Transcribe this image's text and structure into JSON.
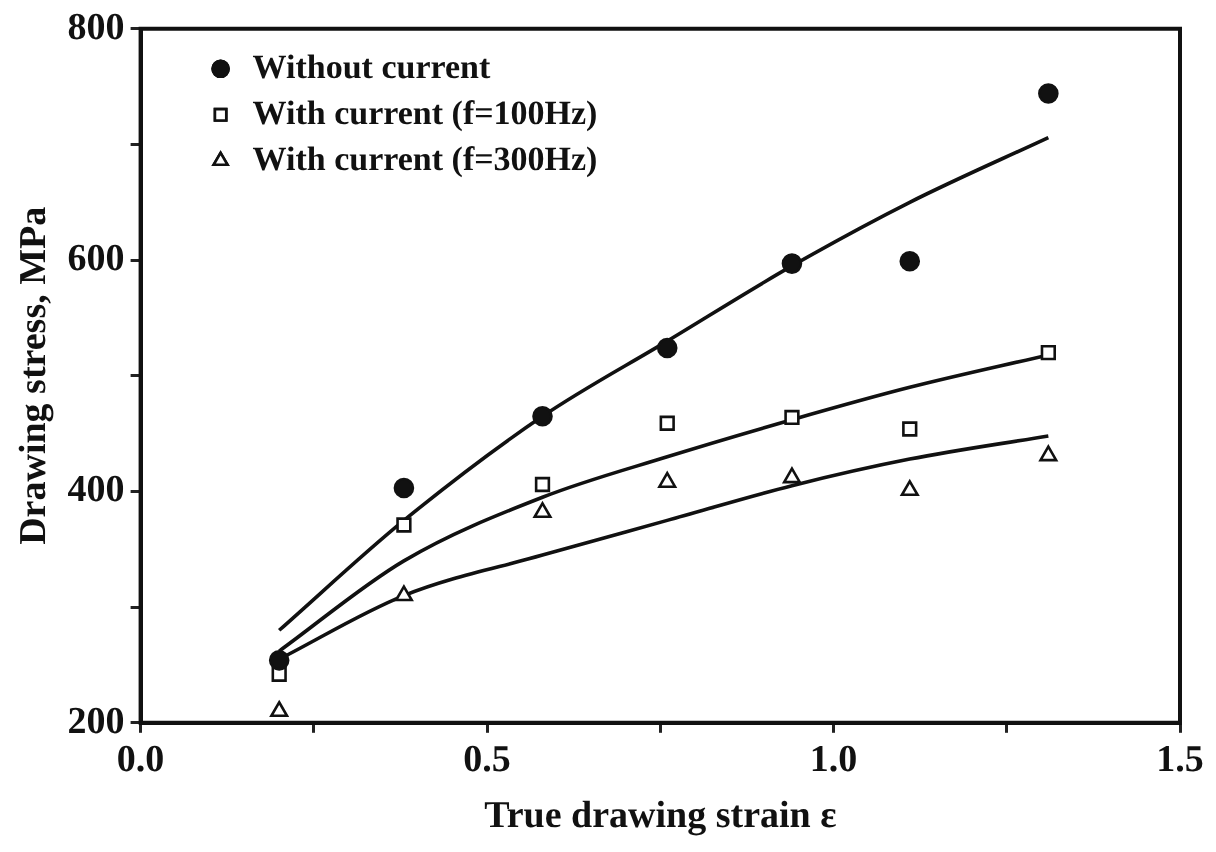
{
  "chart_data": {
    "type": "scatter",
    "xlabel": "True drawing strain ε",
    "ylabel": "Drawing stress, MPa",
    "xlim": [
      0,
      1.5
    ],
    "xticks": [
      {
        "value": 0,
        "label": "0.0"
      },
      {
        "value": 0.25,
        "label": null
      },
      {
        "value": 0.5,
        "label": "0.5"
      },
      {
        "value": 0.75,
        "label": null
      },
      {
        "value": 1,
        "label": "1.0"
      },
      {
        "value": 1.25,
        "label": null
      },
      {
        "value": 1.5,
        "label": "1.5"
      }
    ],
    "ylim": [
      200,
      800
    ],
    "yticks": [
      200,
      {
        "value": 300,
        "label": null
      },
      400,
      {
        "value": 500,
        "label": null
      },
      600,
      {
        "value": 700,
        "label": null
      },
      800
    ],
    "grid": false,
    "legend": "top left",
    "series": [
      {
        "name": "Without current",
        "color": "#111111",
        "marker": "circle",
        "x": [
          0.2,
          0.38,
          0.58,
          0.76,
          0.94,
          1.11,
          1.31
        ],
        "values": [
          254,
          403,
          465,
          524,
          597,
          599,
          744
        ]
      },
      {
        "name": "With current (f=100Hz)",
        "color": "#111111",
        "marker": "square",
        "x": [
          0.2,
          0.38,
          0.58,
          0.76,
          0.94,
          1.11,
          1.31
        ],
        "values": [
          242,
          371,
          406,
          459,
          464,
          454,
          520
        ]
      },
      {
        "name": "With current (f=300Hz)",
        "color": "#111111",
        "marker": "triangle",
        "x": [
          0.2,
          0.38,
          0.58,
          0.76,
          0.94,
          1.11,
          1.31
        ],
        "values": [
          210,
          310,
          382,
          408,
          412,
          401,
          431
        ]
      },
      {
        "type": "line",
        "color": "#111111",
        "marker": "none",
        "x": [
          0.2,
          0.38,
          0.58,
          0.76,
          0.94,
          1.11,
          1.31
        ],
        "values": [
          280,
          375,
          465,
          530,
          595,
          650,
          706
        ]
      },
      {
        "type": "line",
        "color": "#111111",
        "marker": "none",
        "x": [
          0.2,
          0.38,
          0.58,
          0.76,
          0.94,
          1.11,
          1.31
        ],
        "values": [
          262,
          340,
          395,
          430,
          462,
          490,
          518
        ]
      },
      {
        "type": "line",
        "color": "#111111",
        "marker": "none",
        "x": [
          0.2,
          0.38,
          0.58,
          0.76,
          0.94,
          1.11,
          1.31
        ],
        "values": [
          255,
          310,
          345,
          375,
          405,
          428,
          448
        ]
      }
    ]
  }
}
